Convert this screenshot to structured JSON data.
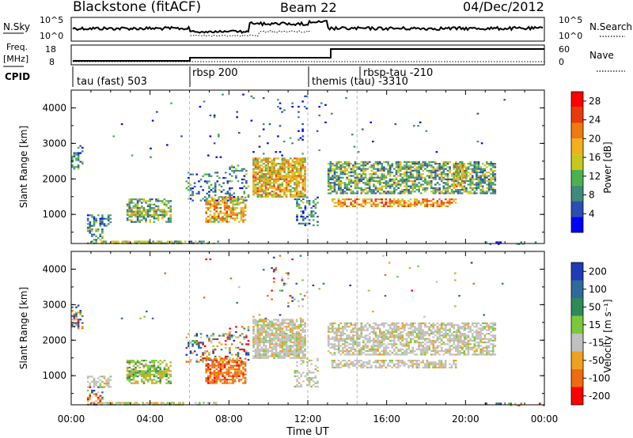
{
  "header": {
    "station": "Blackstone (fitACF)",
    "beam": "Beam 22",
    "date": "04/Dec/2012"
  },
  "top_panels": {
    "nsky_label": "N.Sky",
    "nsky_ticks": [
      "10^5",
      "10^0"
    ],
    "nsearch_label": "N.Search",
    "nsearch_ticks": [
      "10^5",
      "10^0"
    ],
    "freq_label_1": "Freq.",
    "freq_label_2": "[MHz]",
    "freq_ticks": [
      "18",
      "8"
    ],
    "nave_label": "Nave",
    "nave_ticks": [
      "60",
      "0"
    ],
    "cpid_label": "CPID",
    "cpid_modes": [
      {
        "label": "tau (fast) 503",
        "start": "00:00"
      },
      {
        "label": "rbsp 200",
        "start": "06:00"
      },
      {
        "label": "themis (tau) -3310",
        "start": "12:00"
      },
      {
        "label": "rbsp-tau -210",
        "start": "14:30"
      }
    ]
  },
  "chart_data": [
    {
      "type": "heatmap",
      "title": "",
      "xlabel": "Time UT",
      "ylabel": "Slant Range [km]",
      "x_ticks": [
        "00:00",
        "04:00",
        "08:00",
        "12:00",
        "16:00",
        "20:00",
        "00:00"
      ],
      "y_ticks": [
        1000,
        2000,
        3000,
        4000
      ],
      "xlim": [
        0,
        24
      ],
      "ylim": [
        180,
        4500
      ],
      "colorbar_label": "Power [dB]",
      "colorbar_ticks": [
        4,
        8,
        12,
        16,
        20,
        24,
        28
      ],
      "colorbar_range": [
        0,
        30
      ],
      "colors": [
        "#0000ff",
        "#2a4fb0",
        "#3f8a7a",
        "#4caf50",
        "#c8c81a",
        "#f2b01e",
        "#f07a10",
        "#e83a0a",
        "#ff0000"
      ]
    },
    {
      "type": "heatmap",
      "title": "",
      "xlabel": "Time UT",
      "ylabel": "Slant Range [km]",
      "x_ticks": [
        "00:00",
        "04:00",
        "08:00",
        "12:00",
        "16:00",
        "20:00",
        "00:00"
      ],
      "y_ticks": [
        1000,
        2000,
        3000,
        4000
      ],
      "xlim": [
        0,
        24
      ],
      "ylim": [
        180,
        4500
      ],
      "colorbar_label": "Velocity [m s⁻¹]",
      "colorbar_ticks": [
        "200",
        "100",
        "50",
        "15",
        "-15",
        "-50",
        "-100",
        "-200"
      ],
      "colors": [
        "#1f3bb5",
        "#2f6a9a",
        "#2e8a5a",
        "#7cc83c",
        "#c0c0c0",
        "#f0a020",
        "#f06a10",
        "#ff0000"
      ]
    }
  ]
}
